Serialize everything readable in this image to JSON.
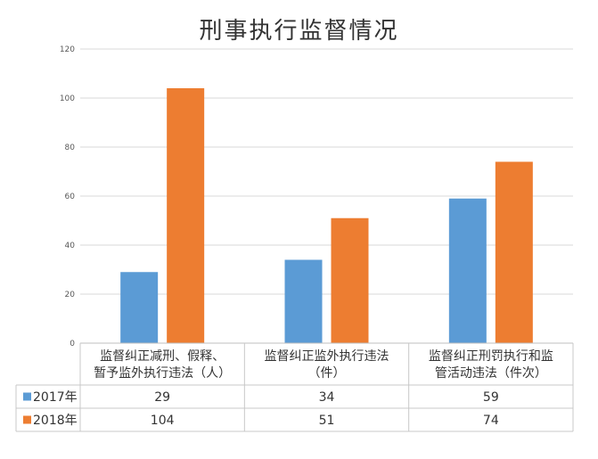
{
  "chart_data": {
    "type": "bar",
    "title": "刑事执行监督情况",
    "categories": [
      [
        "监督纠正减刑、假释、",
        "暂予监外执行违法（人）"
      ],
      [
        "监督纠正监外执行违法",
        "（件）"
      ],
      [
        "监督纠正刑罚执行和监",
        "管活动违法（件次）"
      ]
    ],
    "series": [
      {
        "name": "2017年",
        "values": [
          29,
          34,
          59
        ],
        "color": "#5B9BD5"
      },
      {
        "name": "2018年",
        "values": [
          104,
          51,
          74
        ],
        "color": "#ED7D31"
      }
    ],
    "ylim": [
      0,
      120
    ],
    "yticks": [
      0,
      20,
      40,
      60,
      80,
      100,
      120
    ],
    "grid": true,
    "legend": "data-table-left",
    "data_table": true
  }
}
